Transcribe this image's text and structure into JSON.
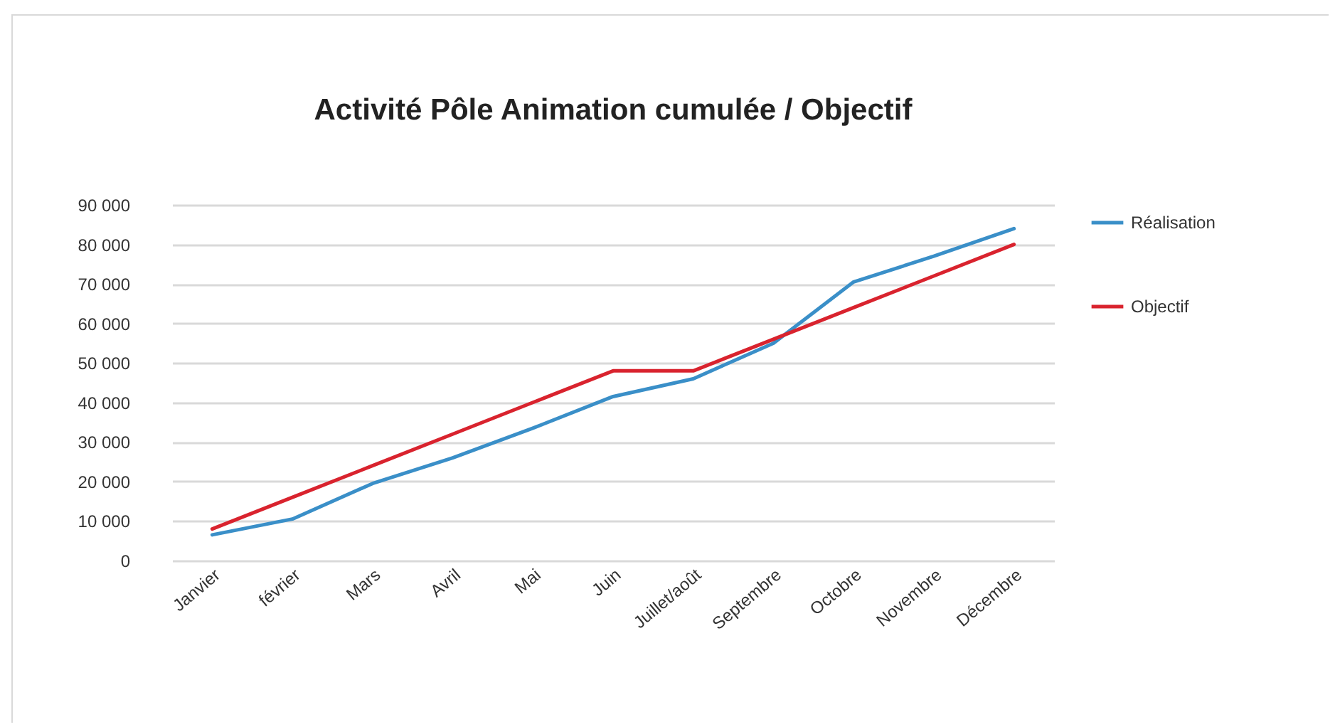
{
  "chart_data": {
    "type": "line",
    "title": "Activité Pôle Animation cumulée / Objectif",
    "categories": [
      "Janvier",
      "février",
      "Mars",
      "Avril",
      "Mai",
      "Juin",
      "Juillet/août",
      "Septembre",
      "Octobre",
      "Novembre",
      "Décembre"
    ],
    "series": [
      {
        "name": "Réalisation",
        "color": "#3a8fc8",
        "values": [
          6500,
          10500,
          19500,
          26000,
          33500,
          41500,
          46000,
          55000,
          70500,
          77000,
          84000
        ]
      },
      {
        "name": "Objectif",
        "color": "#d9232e",
        "values": [
          8000,
          16000,
          24000,
          32000,
          40000,
          48000,
          48000,
          56000,
          64000,
          72000,
          80000
        ]
      }
    ],
    "ylim": [
      0,
      90000
    ],
    "yticks": [
      {
        "value": 0,
        "label": "0"
      },
      {
        "value": 10000,
        "label": "10 000"
      },
      {
        "value": 20000,
        "label": "20 000"
      },
      {
        "value": 30000,
        "label": "30 000"
      },
      {
        "value": 40000,
        "label": "40 000"
      },
      {
        "value": 50000,
        "label": "50 000"
      },
      {
        "value": 60000,
        "label": "60 000"
      },
      {
        "value": 70000,
        "label": "70 000"
      },
      {
        "value": 80000,
        "label": "80 000"
      },
      {
        "value": 90000,
        "label": "90 000"
      }
    ],
    "grid": "y",
    "legend": "right",
    "marker": "none",
    "line_style": "solid"
  }
}
